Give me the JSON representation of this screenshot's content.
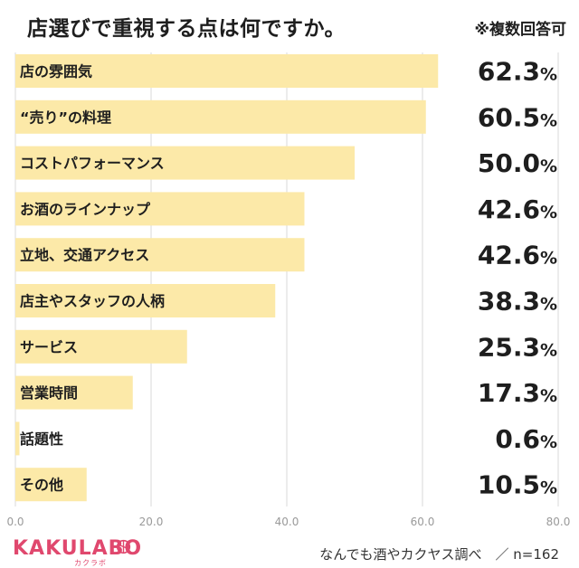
{
  "header": {
    "title": "店選びで重視する点は何ですか。",
    "note": "※複数回答可"
  },
  "colors": {
    "bar": "#fce9a8",
    "gridline": "#d8d8d8",
    "logo": "#e0486e"
  },
  "chart_data": {
    "type": "bar",
    "orientation": "horizontal",
    "title": "店選びで重視する点は何ですか。",
    "categories": [
      "店の雰囲気",
      "“売り”の料理",
      "コストパフォーマンス",
      "お酒のラインナップ",
      "立地、交通アクセス",
      "店主やスタッフの人柄",
      "サービス",
      "営業時間",
      "話題性",
      "その他"
    ],
    "values": [
      62.3,
      60.5,
      50.0,
      42.6,
      42.6,
      38.3,
      25.3,
      17.3,
      0.6,
      10.5
    ],
    "value_labels": [
      "62.3",
      "60.5",
      "50.0",
      "42.6",
      "42.6",
      "38.3",
      "25.3",
      "17.3",
      "0.6",
      "10.5"
    ],
    "unit": "%",
    "xlim": [
      0,
      80
    ],
    "xticks": [
      "0.0",
      "20.0",
      "40.0",
      "60.0",
      "80.0"
    ],
    "grid": true
  },
  "footer": {
    "logo": "KAKULABO",
    "logo_sub": "カクラボ",
    "source": "なんでも酒やカクヤス調べ　／ n=162"
  }
}
